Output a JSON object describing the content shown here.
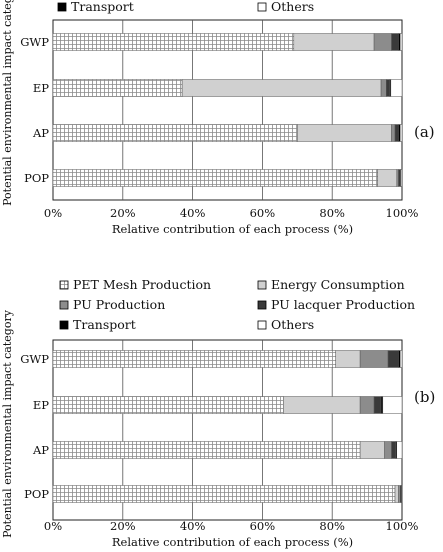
{
  "chart_data": [
    {
      "type": "bar",
      "orientation": "horizontal",
      "stacked": true,
      "panel_label": "(a)",
      "legend": [
        "Transport",
        "Others"
      ],
      "categories": [
        "GWP",
        "EP",
        "AP",
        "POP"
      ],
      "xlabel": "Relative contribution of each process (%)",
      "ylabel": "Potential environmental impact category",
      "xlim": [
        0,
        100
      ],
      "xticks": [
        "0%",
        "20%",
        "40%",
        "60%",
        "80%",
        "100%"
      ],
      "series": [
        {
          "name": "PET Mesh Production",
          "values": [
            69,
            37,
            70,
            93
          ],
          "pattern": "grid"
        },
        {
          "name": "Energy Consumption",
          "values": [
            23,
            57,
            27,
            5.5
          ],
          "pattern": "lightgray"
        },
        {
          "name": "PU Production",
          "values": [
            5,
            1.5,
            1,
            0.5
          ],
          "pattern": "midgray"
        },
        {
          "name": "PU lacquer Production",
          "values": [
            2,
            1,
            1,
            0.5
          ],
          "pattern": "darkgray"
        },
        {
          "name": "Transport",
          "values": [
            0.5,
            0.3,
            0.5,
            0.2
          ],
          "pattern": "black"
        },
        {
          "name": "Others",
          "values": [
            0.5,
            3.2,
            0.5,
            0.3
          ],
          "pattern": "white"
        }
      ]
    },
    {
      "type": "bar",
      "orientation": "horizontal",
      "stacked": true,
      "panel_label": "(b)",
      "legend": [
        "PET Mesh Production",
        "Energy Consumption",
        "PU Production",
        "PU lacquer Production",
        "Transport",
        "Others"
      ],
      "categories": [
        "GWP",
        "EP",
        "AP",
        "POP"
      ],
      "xlabel": "Relative contribution of each process (%)",
      "ylabel": "Potential environmental impact category",
      "xlim": [
        0,
        100
      ],
      "xticks": [
        "0%",
        "20%",
        "40%",
        "60%",
        "80%",
        "100%"
      ],
      "series": [
        {
          "name": "PET Mesh Production",
          "values": [
            81,
            66,
            88,
            98
          ],
          "pattern": "grid"
        },
        {
          "name": "Energy Consumption",
          "values": [
            7,
            22,
            7,
            1
          ],
          "pattern": "lightgray"
        },
        {
          "name": "PU Production",
          "values": [
            8,
            4,
            2,
            0.5
          ],
          "pattern": "midgray"
        },
        {
          "name": "PU lacquer Production",
          "values": [
            3,
            2,
            1.2,
            0.3
          ],
          "pattern": "darkgray"
        },
        {
          "name": "Transport",
          "values": [
            0.5,
            0.5,
            0.3,
            0.1
          ],
          "pattern": "black"
        },
        {
          "name": "Others",
          "values": [
            0.5,
            5.5,
            1.5,
            0.1
          ],
          "pattern": "white"
        }
      ]
    }
  ]
}
